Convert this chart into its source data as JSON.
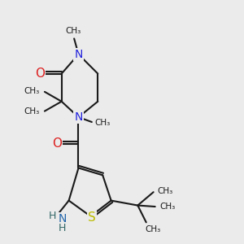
{
  "background_color": "#ebebeb",
  "bond_color": "#1a1a1a",
  "bond_width": 1.5,
  "atom_colors": {
    "N": "#2222dd",
    "O": "#dd2222",
    "S": "#bbbb00",
    "C": "#1a1a1a",
    "NH2_N": "#2266aa",
    "NH2_H": "#336666"
  },
  "xlim": [
    0,
    10
  ],
  "ylim": [
    0,
    10
  ]
}
